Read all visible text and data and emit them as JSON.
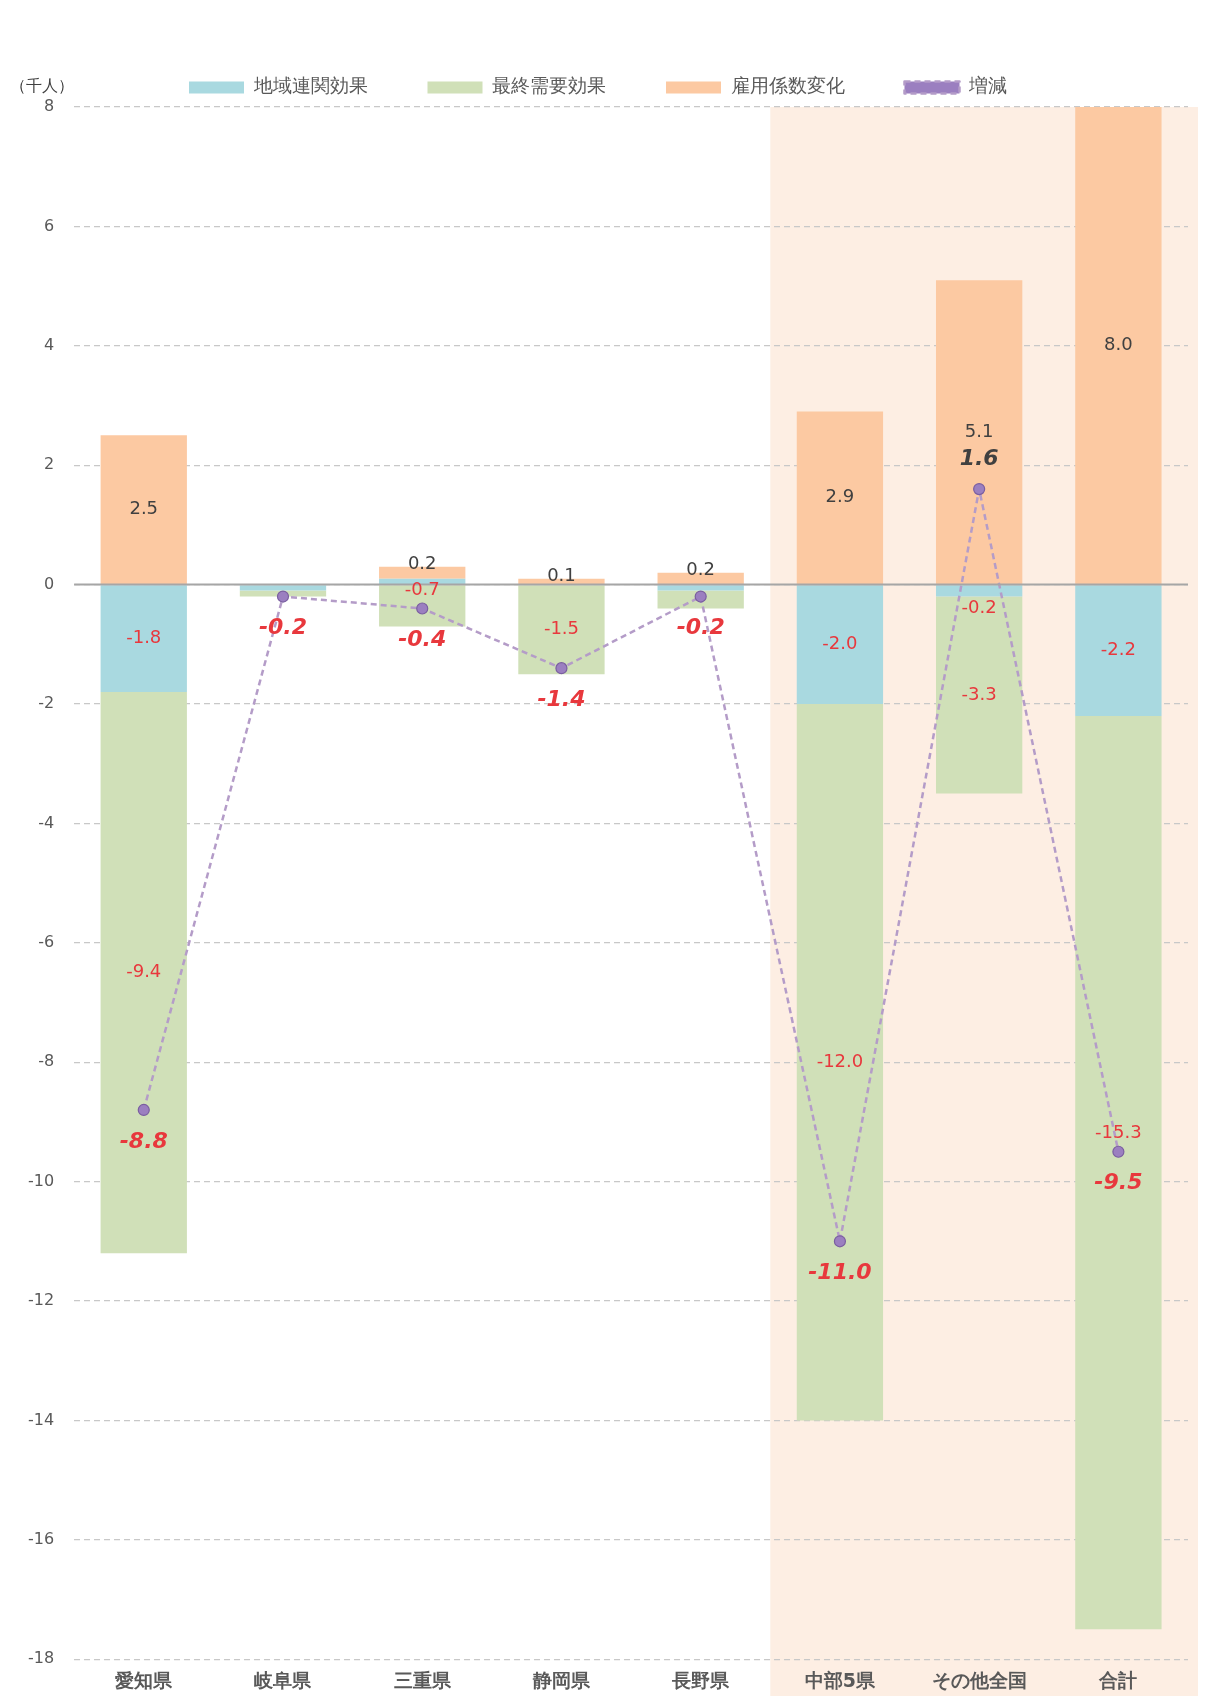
{
  "chart_data": {
    "type": "bar",
    "stacked": true,
    "ylabel": "（千人）",
    "categories": [
      "愛知県",
      "岐阜県",
      "三重県",
      "静岡県",
      "長野県",
      "中部5県",
      "その他全国",
      "合計"
    ],
    "series": [
      {
        "name": "地域連関効果",
        "color": "#a9d9e0",
        "values": [
          -1.8,
          -0.1,
          0.1,
          0.0,
          -0.1,
          -2.0,
          -0.2,
          -2.2
        ],
        "value_labels": [
          "-1.8",
          null,
          null,
          null,
          null,
          "-2.0",
          "-0.2",
          "-2.2"
        ]
      },
      {
        "name": "最終需要効果",
        "color": "#d0e0b8",
        "values": [
          -9.4,
          -0.1,
          -0.7,
          -1.5,
          -0.3,
          -12.0,
          -3.3,
          -15.3
        ],
        "value_labels": [
          "-9.4",
          null,
          "-0.7",
          "-1.5",
          null,
          "-12.0",
          "-3.3",
          "-15.3"
        ]
      },
      {
        "name": "雇用係数変化",
        "color": "#fcc9a2",
        "values": [
          2.5,
          0.0,
          0.2,
          0.1,
          0.2,
          2.9,
          5.1,
          8.0
        ],
        "value_labels": [
          "2.5",
          null,
          "0.2",
          "0.1",
          "0.2",
          "2.9",
          "5.1",
          "8.0"
        ]
      },
      {
        "name": "増減",
        "type": "line",
        "color": "#b49cc8",
        "marker": "circle",
        "line_style": "dashed",
        "values": [
          -8.8,
          -0.2,
          -0.4,
          -1.4,
          -0.2,
          -11.0,
          1.6,
          -9.5
        ],
        "value_labels": [
          "-8.8",
          "-0.2",
          "-0.4",
          "-1.4",
          "-0.2",
          "-11.0",
          "1.6",
          "-9.5"
        ]
      }
    ],
    "ylim": [
      -18,
      8
    ],
    "yticks": [
      -18,
      -16,
      -14,
      -12,
      -10,
      -8,
      -6,
      -4,
      -2,
      0,
      2,
      4,
      6,
      8
    ],
    "grid": "y",
    "legend": "top",
    "ref_lines": [
      {
        "axis": "y",
        "value": 0,
        "color": "#a6a6a6"
      }
    ],
    "bands": [
      {
        "axis": "x",
        "from": "中部5県",
        "to": "合計",
        "color": "#fdeee3"
      }
    ]
  }
}
